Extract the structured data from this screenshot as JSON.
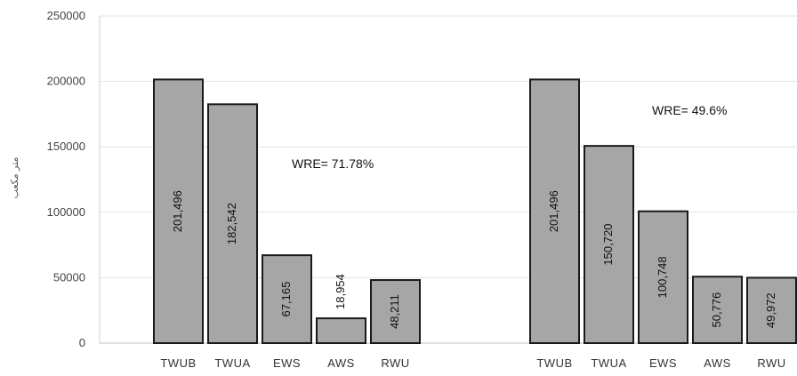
{
  "chart_data": [
    {
      "type": "bar",
      "categories": [
        "TWUB",
        "TWUA",
        "EWS",
        "AWS",
        "RWU"
      ],
      "values": [
        201496,
        182542,
        67165,
        18954,
        48211
      ],
      "value_labels": [
        "201,496",
        "182,542",
        "67,165",
        "18,954",
        "48,211"
      ],
      "annotation": "WRE= 71.78%",
      "ylabel": "متر مکعب",
      "ylim": [
        0,
        250000
      ],
      "yticks": [
        "0",
        "50000",
        "100000",
        "150000",
        "200000",
        "250000"
      ],
      "grid": true,
      "bar_color": "#a6a6a6"
    },
    {
      "type": "bar",
      "categories": [
        "TWUB",
        "TWUA",
        "EWS",
        "AWS",
        "RWU"
      ],
      "values": [
        201496,
        150720,
        100748,
        50776,
        49972
      ],
      "value_labels": [
        "201,496",
        "150,720",
        "100,748",
        "50,776",
        "49,972"
      ],
      "annotation": "WRE= 49.6%",
      "ylim": [
        0,
        250000
      ],
      "grid": true,
      "bar_color": "#a6a6a6"
    }
  ]
}
